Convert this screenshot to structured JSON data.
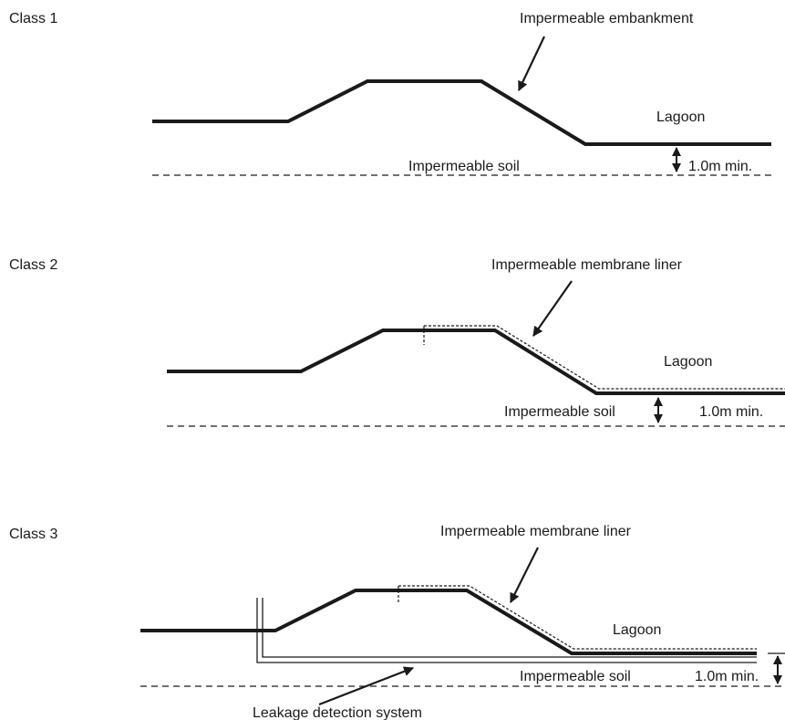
{
  "classes": [
    {
      "title": "Class 1",
      "pointer_label": "Impermeable embankment",
      "lagoon_label": "Lagoon",
      "soil_label": "Impermeable soil",
      "dimension_label": "1.0m min."
    },
    {
      "title": "Class 2",
      "pointer_label": "Impermeable membrane liner",
      "lagoon_label": "Lagoon",
      "soil_label": "Impermeable soil",
      "dimension_label": "1.0m min."
    },
    {
      "title": "Class 3",
      "pointer_label": "Impermeable membrane liner",
      "lagoon_label": "Lagoon",
      "soil_label": "Impermeable soil",
      "dimension_label": "1.0m min.",
      "detection_label": "Leakage detection system"
    }
  ]
}
